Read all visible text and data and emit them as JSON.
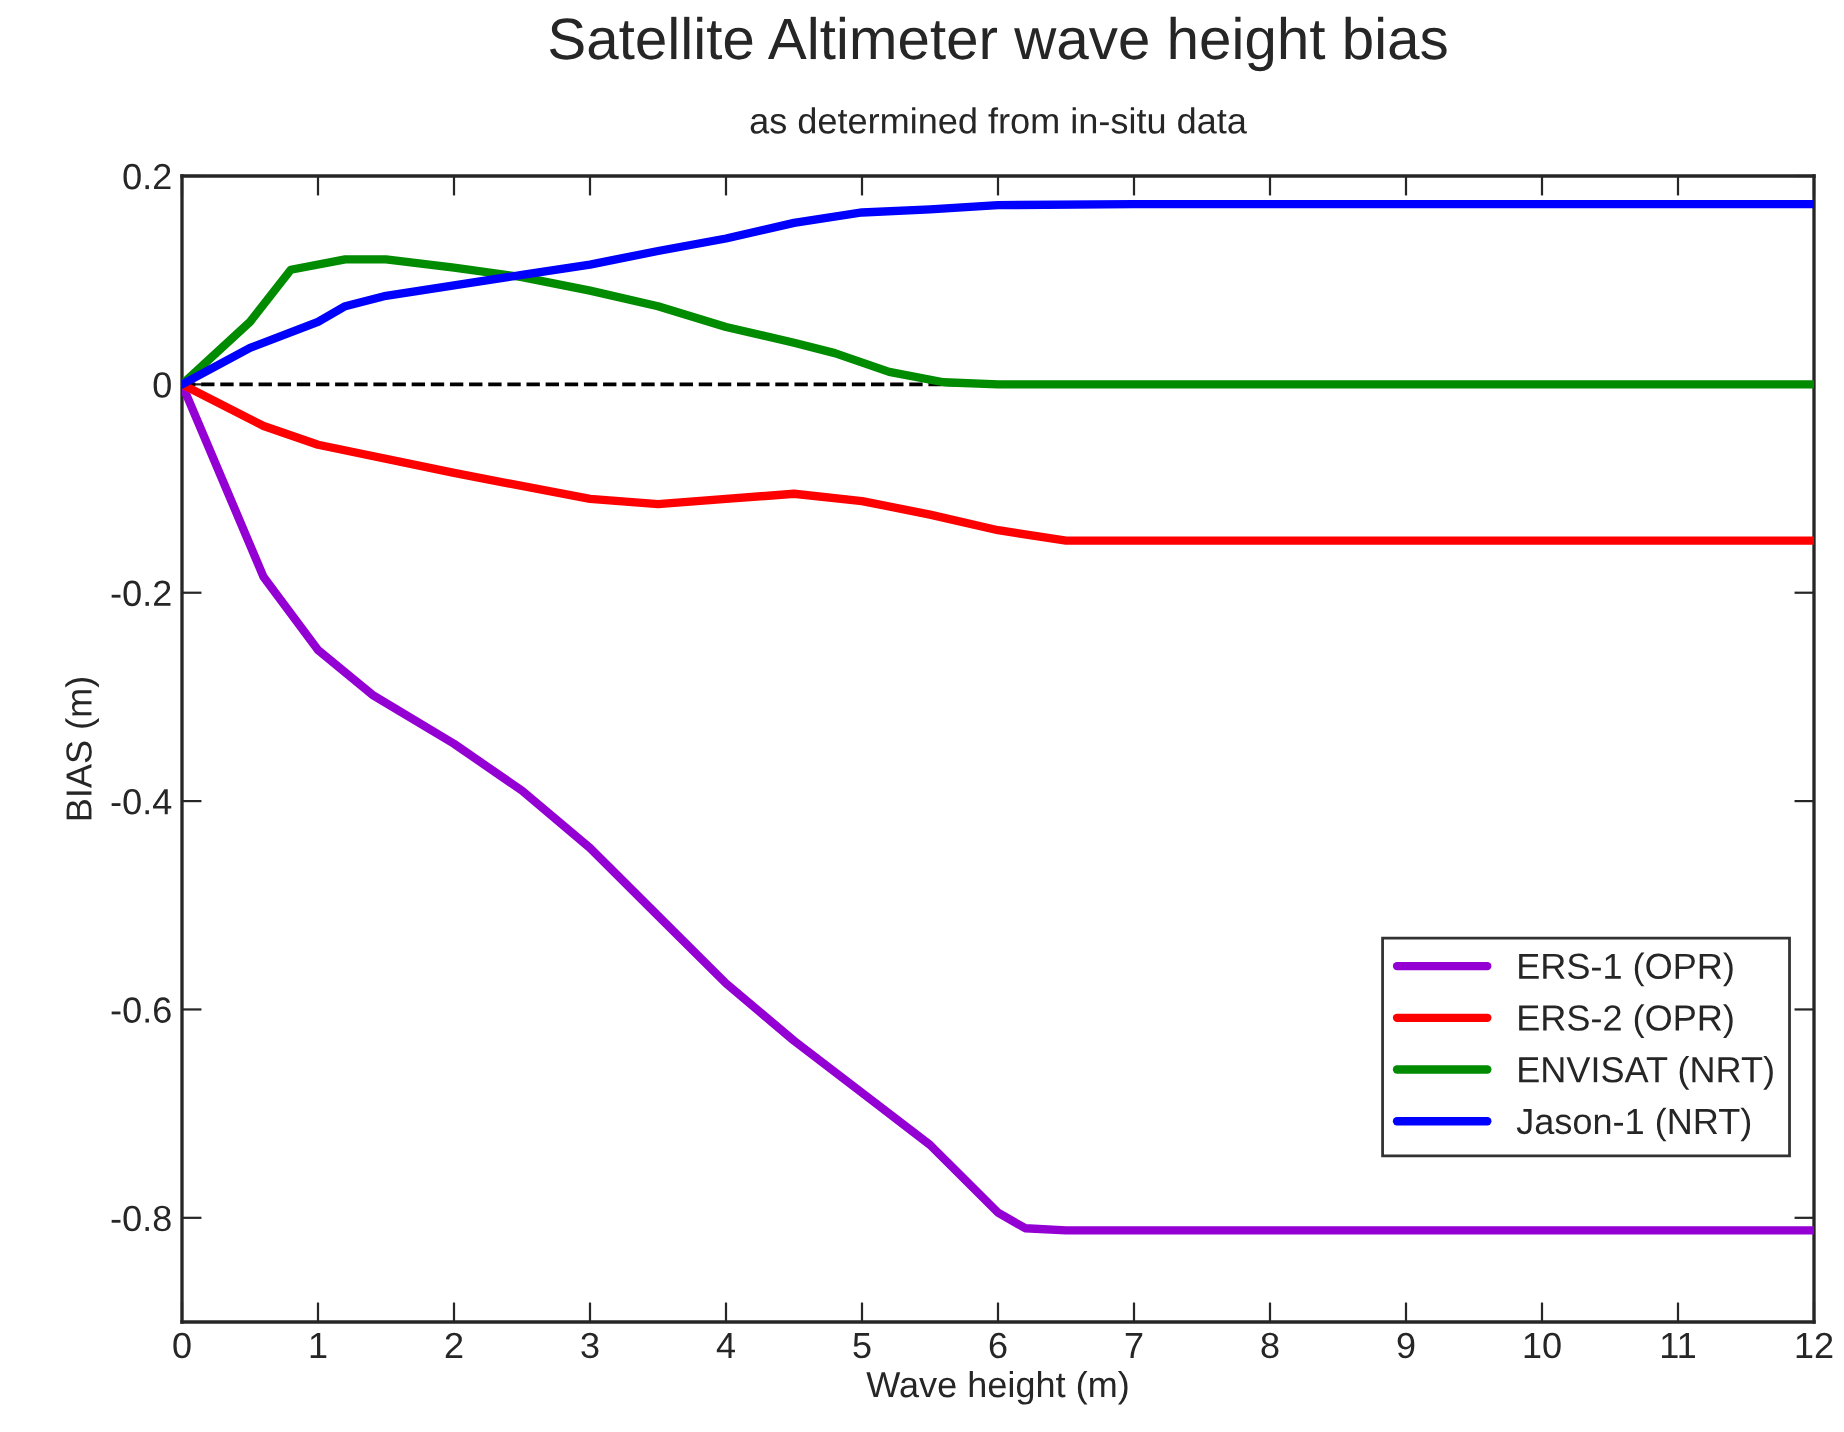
{
  "chart_data": {
    "type": "line",
    "title": "Satellite Altimeter wave height bias",
    "subtitle": "as determined from in-situ data",
    "xlabel": "Wave height (m)",
    "ylabel": "BIAS (m)",
    "xlim": [
      0,
      12
    ],
    "xticks": [
      0,
      1,
      2,
      3,
      4,
      5,
      6,
      7,
      8,
      9,
      10,
      11,
      12
    ],
    "ylim": [
      -0.9,
      0.2
    ],
    "yticks": [
      -0.8,
      -0.6,
      -0.4,
      -0.2,
      0,
      0.2
    ],
    "grid": false,
    "legend": "bottom right",
    "line_style": "solid",
    "ref_lines": [
      {
        "axis": "y",
        "value": 0,
        "color": "#000000",
        "line_style": "dashed"
      }
    ],
    "series": [
      {
        "name": "ERS-1 (OPR)",
        "color": "#9400d3",
        "x": [
          0,
          0.6,
          1,
          1.4,
          2,
          2.5,
          3,
          3.5,
          4,
          4.5,
          5,
          5.5,
          6,
          6.2,
          6.5,
          12
        ],
        "values": [
          0,
          -0.185,
          -0.255,
          -0.298,
          -0.345,
          -0.39,
          -0.445,
          -0.51,
          -0.575,
          -0.63,
          -0.68,
          -0.73,
          -0.795,
          -0.81,
          -0.812,
          -0.812
        ]
      },
      {
        "name": "ERS-2 (OPR)",
        "color": "#ff0000",
        "x": [
          0,
          0.6,
          1,
          2,
          3,
          3.5,
          4,
          4.5,
          5,
          5.5,
          6,
          6.5,
          7,
          12
        ],
        "values": [
          0,
          -0.04,
          -0.058,
          -0.085,
          -0.11,
          -0.115,
          -0.11,
          -0.105,
          -0.112,
          -0.125,
          -0.14,
          -0.15,
          -0.15,
          -0.15
        ]
      },
      {
        "name": "ENVISAT (NRT)",
        "color": "#008b00",
        "x": [
          0,
          0.5,
          0.8,
          1.2,
          1.5,
          2,
          2.5,
          3,
          3.5,
          4,
          4.5,
          4.8,
          5.2,
          5.6,
          6,
          12
        ],
        "values": [
          0,
          0.06,
          0.11,
          0.12,
          0.12,
          0.112,
          0.103,
          0.09,
          0.075,
          0.055,
          0.04,
          0.03,
          0.012,
          0.002,
          0,
          0
        ]
      },
      {
        "name": "Jason-1 (NRT)",
        "color": "#0000ff",
        "x": [
          0,
          0.5,
          1,
          1.2,
          1.5,
          2,
          2.5,
          3,
          3.5,
          4,
          4.5,
          5,
          5.5,
          6,
          7,
          12
        ],
        "values": [
          0,
          0.035,
          0.06,
          0.075,
          0.085,
          0.095,
          0.105,
          0.115,
          0.128,
          0.14,
          0.155,
          0.165,
          0.168,
          0.172,
          0.173,
          0.173
        ]
      }
    ]
  }
}
